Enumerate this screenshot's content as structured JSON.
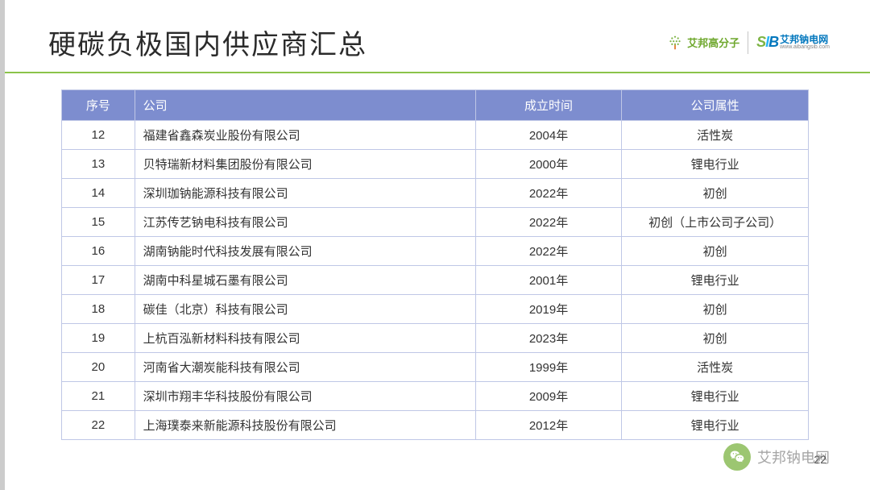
{
  "title": "硬碳负极国内供应商汇总",
  "logo1_text": "艾邦高分子",
  "logo2_cn": "艾邦钠电网",
  "logo2_url": "www.aibangsib.com",
  "table": {
    "columns": [
      "序号",
      "公司",
      "成立时间",
      "公司属性"
    ],
    "col_align": [
      "center",
      "left",
      "center",
      "center"
    ],
    "header_bg": "#7d8dcf",
    "header_fg": "#ffffff",
    "border_color": "#bfc7e6",
    "cell_fontsize": 15,
    "rows": [
      [
        "12",
        "福建省鑫森炭业股份有限公司",
        "2004年",
        "活性炭"
      ],
      [
        "13",
        "贝特瑞新材料集团股份有限公司",
        "2000年",
        "锂电行业"
      ],
      [
        "14",
        "深圳珈钠能源科技有限公司",
        "2022年",
        "初创"
      ],
      [
        "15",
        "江苏传艺钠电科技有限公司",
        "2022年",
        "初创（上市公司子公司）"
      ],
      [
        "16",
        "湖南钠能时代科技发展有限公司",
        "2022年",
        "初创"
      ],
      [
        "17",
        "湖南中科星城石墨有限公司",
        "2001年",
        "锂电行业"
      ],
      [
        "18",
        "碳佳（北京）科技有限公司",
        "2019年",
        "初创"
      ],
      [
        "19",
        "上杭百泓新材料科技有限公司",
        "2023年",
        "初创"
      ],
      [
        "20",
        "河南省大潮炭能科技有限公司",
        "1999年",
        "活性炭"
      ],
      [
        "21",
        "深圳市翔丰华科技股份有限公司",
        "2009年",
        "锂电行业"
      ],
      [
        "22",
        "上海璞泰来新能源科技股份有限公司",
        "2012年",
        "锂电行业"
      ]
    ]
  },
  "watermark_text": "艾邦钠电网",
  "page_number": "22",
  "colors": {
    "hr": "#8bc34a",
    "title": "#2b2b2b",
    "leftbar": "#cccccc"
  }
}
